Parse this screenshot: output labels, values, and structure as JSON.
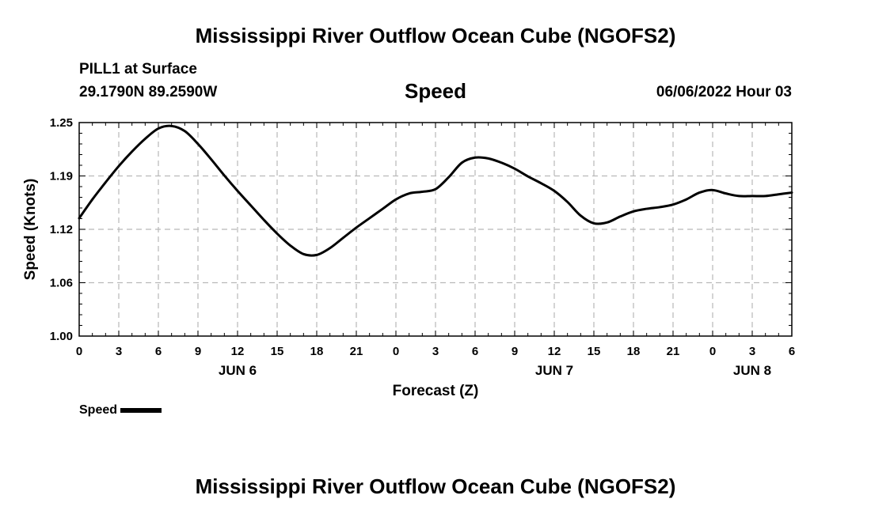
{
  "header": {
    "title": "Mississippi River Outflow Ocean Cube (NGOFS2)",
    "station": "PILL1 at Surface",
    "coords": "29.1790N  89.2590W",
    "variable": "Speed",
    "datetime": "06/06/2022 Hour 03"
  },
  "footer": {
    "title": "Mississippi River Outflow Ocean Cube (NGOFS2)"
  },
  "legend": {
    "label": "Speed",
    "color": "#000000"
  },
  "chart_data": {
    "type": "line",
    "title": "Speed",
    "xlabel": "Forecast (Z)",
    "ylabel": "Speed (Knots)",
    "xlim": [
      0,
      54
    ],
    "ylim": [
      1.0,
      1.25
    ],
    "grid": true,
    "y_ticks": [
      "1.00",
      "1.06",
      "1.12",
      "1.19",
      "1.25"
    ],
    "y_tick_values": [
      1.0,
      1.0625,
      1.125,
      1.1875,
      1.25
    ],
    "x_ticks": [
      {
        "hour": 0,
        "label": "0"
      },
      {
        "hour": 3,
        "label": "3"
      },
      {
        "hour": 6,
        "label": "6"
      },
      {
        "hour": 9,
        "label": "9"
      },
      {
        "hour": 12,
        "label": "12"
      },
      {
        "hour": 15,
        "label": "15"
      },
      {
        "hour": 18,
        "label": "18"
      },
      {
        "hour": 21,
        "label": "21"
      },
      {
        "hour": 24,
        "label": "0"
      },
      {
        "hour": 27,
        "label": "3"
      },
      {
        "hour": 30,
        "label": "6"
      },
      {
        "hour": 33,
        "label": "9"
      },
      {
        "hour": 36,
        "label": "12"
      },
      {
        "hour": 39,
        "label": "15"
      },
      {
        "hour": 42,
        "label": "18"
      },
      {
        "hour": 45,
        "label": "21"
      },
      {
        "hour": 48,
        "label": "0"
      },
      {
        "hour": 51,
        "label": "3"
      },
      {
        "hour": 54,
        "label": "6"
      }
    ],
    "date_labels": [
      {
        "hour": 12,
        "label": "JUN 6"
      },
      {
        "hour": 36,
        "label": "JUN 7"
      },
      {
        "hour": 51,
        "label": "JUN 8"
      }
    ],
    "series": [
      {
        "name": "Speed",
        "color": "#000000",
        "x": [
          0,
          1,
          2,
          3,
          4,
          5,
          6,
          7,
          8,
          9,
          10,
          11,
          12,
          13,
          14,
          15,
          16,
          17,
          18,
          19,
          20,
          21,
          22,
          23,
          24,
          25,
          26,
          27,
          28,
          29,
          30,
          31,
          32,
          33,
          34,
          35,
          36,
          37,
          38,
          39,
          40,
          41,
          42,
          43,
          44,
          45,
          46,
          47,
          48,
          49,
          50,
          51,
          52,
          53,
          54
        ],
        "values": [
          1.138,
          1.16,
          1.18,
          1.199,
          1.216,
          1.231,
          1.243,
          1.246,
          1.24,
          1.225,
          1.207,
          1.188,
          1.17,
          1.153,
          1.136,
          1.12,
          1.106,
          1.096,
          1.095,
          1.103,
          1.115,
          1.127,
          1.138,
          1.149,
          1.16,
          1.167,
          1.169,
          1.172,
          1.186,
          1.203,
          1.209,
          1.208,
          1.203,
          1.196,
          1.187,
          1.179,
          1.17,
          1.157,
          1.141,
          1.132,
          1.133,
          1.14,
          1.146,
          1.149,
          1.151,
          1.154,
          1.16,
          1.168,
          1.171,
          1.167,
          1.164,
          1.164,
          1.164,
          1.166,
          1.168
        ]
      }
    ]
  }
}
